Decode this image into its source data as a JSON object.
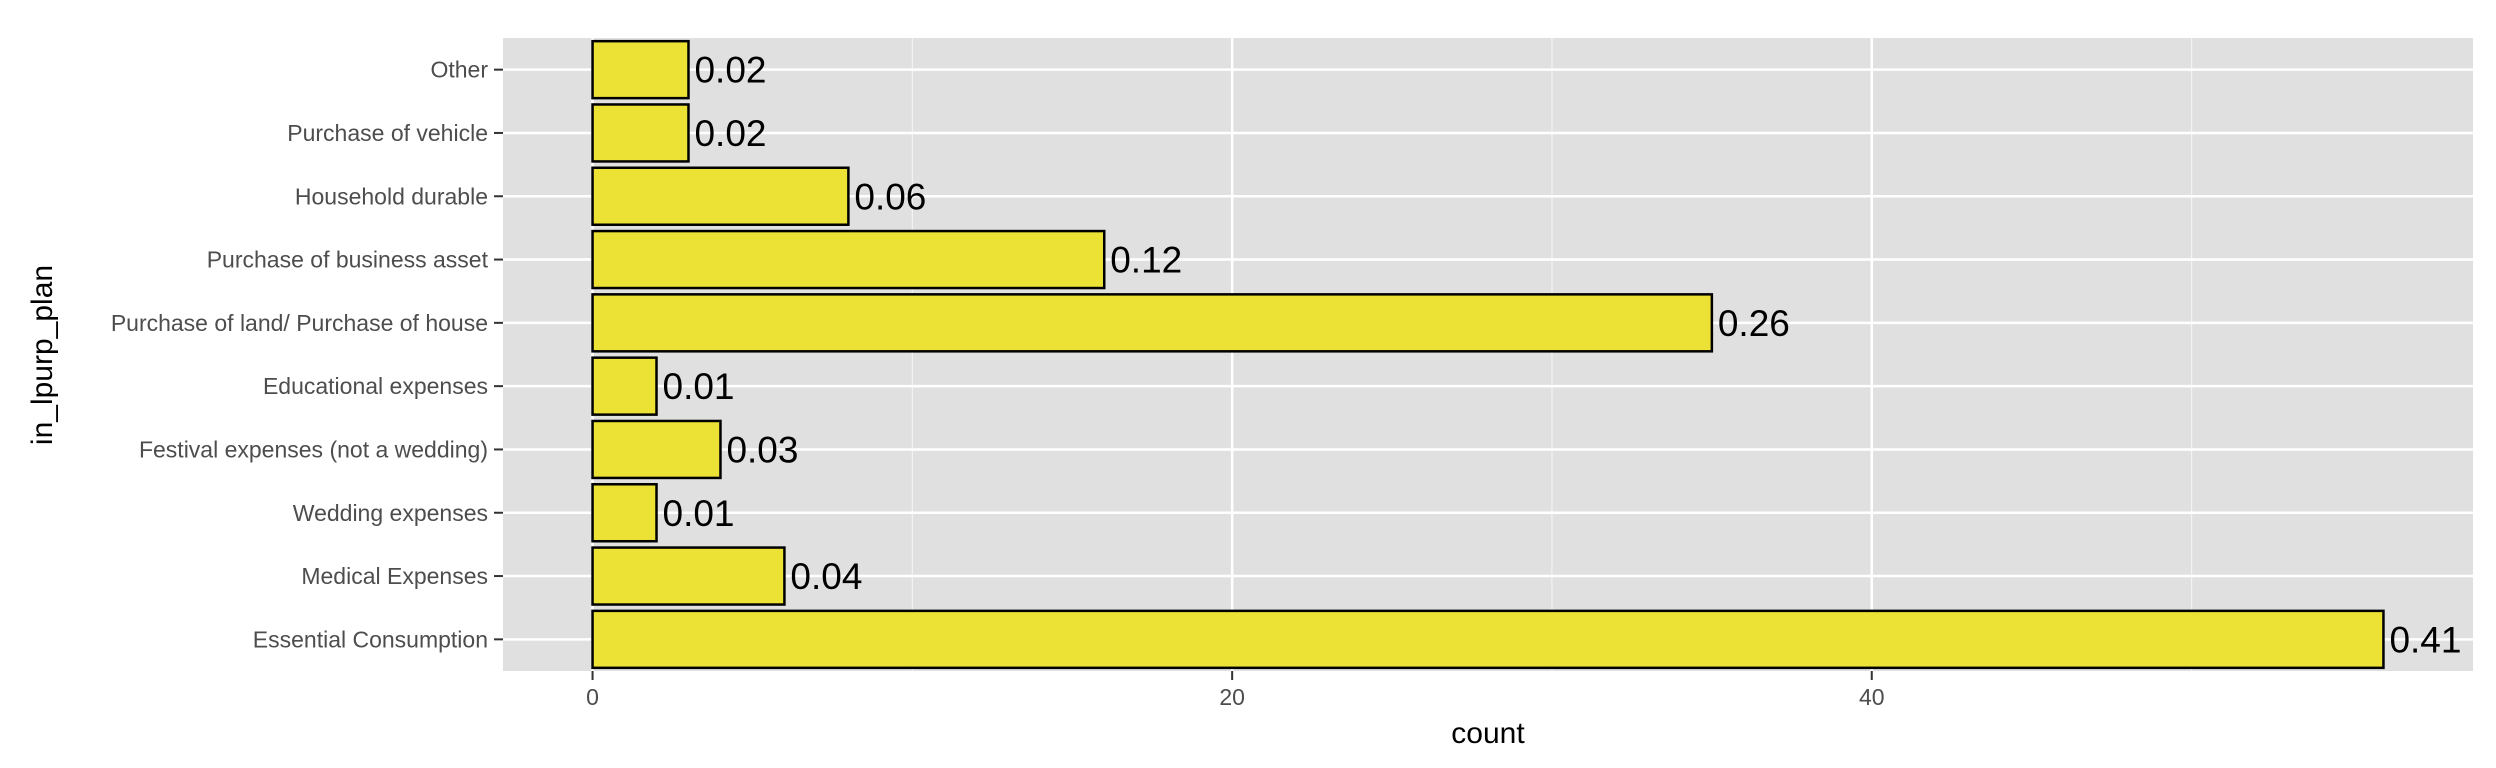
{
  "chart_data": {
    "type": "bar",
    "orientation": "horizontal",
    "xlabel": "count",
    "ylabel": "in_lpurp_plan",
    "categories": [
      "Essential Consumption",
      "Medical Expenses",
      "Wedding expenses",
      "Festival expenses (not a wedding)",
      "Educational expenses",
      "Purchase of land/ Purchase of house",
      "Purchase of business asset",
      "Household durable",
      "Purchase of vehicle",
      "Other"
    ],
    "values": [
      56,
      6,
      2,
      4,
      2,
      35,
      16,
      8,
      3,
      3
    ],
    "data_labels": [
      "0.41",
      "0.04",
      "0.01",
      "0.03",
      "0.01",
      "0.26",
      "0.12",
      "0.06",
      "0.02",
      "0.02"
    ],
    "xticks": [
      0,
      20,
      40
    ],
    "xlim": [
      -2.8,
      58.8
    ],
    "grid": true,
    "legend": "none",
    "colors": {
      "bar_fill": "#ece236",
      "bar_stroke": "#000000",
      "panel_bg": "#e0e0e0",
      "grid": "#ffffff"
    }
  }
}
